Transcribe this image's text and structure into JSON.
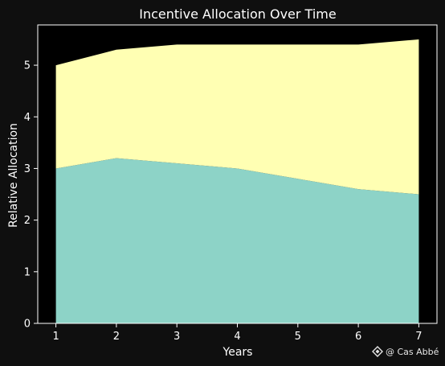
{
  "chart_data": {
    "type": "area",
    "stacked": true,
    "title": "Incentive Allocation Over Time",
    "xlabel": "Years",
    "ylabel": "Relative Allocation",
    "x": [
      1,
      2,
      3,
      4,
      5,
      6,
      7
    ],
    "xlim": [
      0.7,
      7.3
    ],
    "ylim": [
      0,
      5.78
    ],
    "xticks": [
      1,
      2,
      3,
      4,
      5,
      6,
      7
    ],
    "yticks": [
      0,
      1,
      2,
      3,
      4,
      5
    ],
    "grid": false,
    "background": "#000000",
    "series": [
      {
        "values": [
          3.0,
          3.2,
          3.1,
          3.0,
          2.8,
          2.6,
          2.5
        ],
        "color": "#8dd3c7"
      },
      {
        "values": [
          2.0,
          2.1,
          2.3,
          2.4,
          2.6,
          2.8,
          3.0
        ],
        "color": "#ffffb3"
      }
    ]
  },
  "watermark": {
    "text": "@ Cas Abbé",
    "icon": "diamond-logo-icon"
  }
}
